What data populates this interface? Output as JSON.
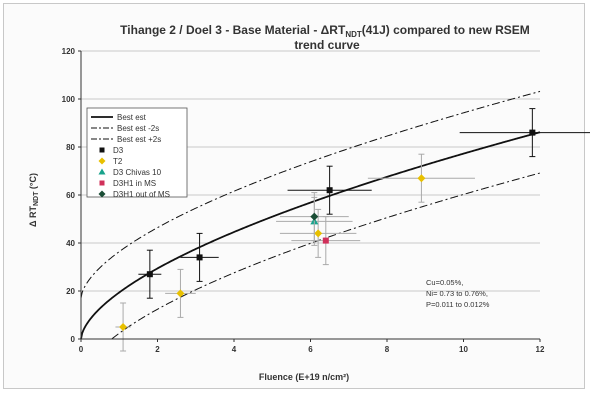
{
  "chart_data": {
    "type": "scatter",
    "title_line1": "Tihange 2 / Doel 3 - Base Material - ΔRT",
    "title_sub": "NDT",
    "title_rest": "(41J) compared to new RSEM",
    "title_line2": "trend curve",
    "xlabel": "Fluence (E+19 n/cm²)",
    "ylabel_main": "Δ RT",
    "ylabel_sub": "NDT",
    "ylabel_unit": " (°C)",
    "xlim": [
      0,
      12
    ],
    "ylim": [
      0,
      120
    ],
    "x_ticks": [
      0,
      2,
      4,
      6,
      8,
      10,
      12
    ],
    "y_ticks": [
      0,
      20,
      40,
      60,
      80,
      100,
      120
    ],
    "grid": "horizontal",
    "legend_position": "top-left",
    "legend": [
      "Best est",
      "Best est -2s",
      "Best est +2s",
      "D3",
      "T2",
      "D3 Chivas 10",
      "D3H1 in MS",
      "D3H1 out of MS"
    ],
    "curves": [
      {
        "name": "Best est",
        "style": "solid",
        "coef": 19.4,
        "offset": 0,
        "power": 0.6
      },
      {
        "name": "Best est -2s",
        "style": "dashdot",
        "offset": -17
      },
      {
        "name": "Best est +2s",
        "style": "dashdot",
        "offset": 17
      }
    ],
    "series": [
      {
        "name": "D3",
        "marker": "square",
        "color": "#111111",
        "points": [
          {
            "x": 1.8,
            "y": 27,
            "xerr": 0.3,
            "yerr": 10
          },
          {
            "x": 3.1,
            "y": 34,
            "xerr": 0.5,
            "yerr": 10
          },
          {
            "x": 6.5,
            "y": 62,
            "xerr": 1.1,
            "yerr": 10
          },
          {
            "x": 11.8,
            "y": 86,
            "xerr": 1.9,
            "yerr": 10
          }
        ]
      },
      {
        "name": "T2",
        "marker": "diamond",
        "color": "#e8c000",
        "points": [
          {
            "x": 1.1,
            "y": 5,
            "xerr": 0.2,
            "yerr": 10
          },
          {
            "x": 2.6,
            "y": 19,
            "xerr": 0.4,
            "yerr": 10
          },
          {
            "x": 6.2,
            "y": 44,
            "xerr": 1.0,
            "yerr": 10
          },
          {
            "x": 8.9,
            "y": 67,
            "xerr": 1.4,
            "yerr": 10
          }
        ]
      },
      {
        "name": "D3 Chivas 10",
        "marker": "triangle",
        "color": "#19a38c",
        "points": [
          {
            "x": 6.1,
            "y": 49,
            "xerr": 1.0,
            "yerr": 10
          }
        ]
      },
      {
        "name": "D3H1 in MS",
        "marker": "square",
        "color": "#d0305a",
        "points": [
          {
            "x": 6.4,
            "y": 41,
            "xerr": 0.9,
            "yerr": 10
          }
        ]
      },
      {
        "name": "D3H1 out of MS",
        "marker": "diamond",
        "color": "#1a4d35",
        "points": [
          {
            "x": 6.1,
            "y": 51,
            "xerr": 0.9,
            "yerr": 10
          }
        ]
      }
    ],
    "annotation": [
      "Cu=0.05%,",
      "Ni= 0.73 to 0.76%,",
      "P=0.011 to 0.012%"
    ]
  }
}
